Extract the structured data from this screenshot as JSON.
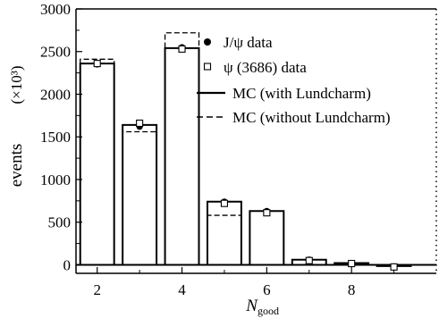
{
  "chart_data": {
    "type": "bar",
    "title": "",
    "xlabel": "N",
    "xlabel_sub": "good",
    "ylabel": "events",
    "ylabel_unit": "(×10³)",
    "xlim": [
      1.5,
      10
    ],
    "ylim": [
      -100,
      3000
    ],
    "x_ticks": [
      "2",
      "4",
      "6",
      "8"
    ],
    "x_tick_values": [
      2,
      4,
      6,
      8
    ],
    "y_ticks": [
      "0",
      "500",
      "1000",
      "1500",
      "2000",
      "2500",
      "3000"
    ],
    "y_tick_values": [
      0,
      500,
      1000,
      1500,
      2000,
      2500,
      3000
    ],
    "grid": false,
    "legend_position": "top-right",
    "x": [
      2,
      3,
      4,
      5,
      6,
      7,
      8,
      9
    ],
    "series": [
      {
        "name": "J/ψ data",
        "marker": "filled-circle",
        "values": [
          2350,
          1620,
          2550,
          740,
          630,
          60,
          20,
          -20
        ]
      },
      {
        "name": "ψ (3686) data",
        "marker": "open-square",
        "values": [
          2360,
          1660,
          2530,
          720,
          610,
          50,
          15,
          -25
        ]
      },
      {
        "name": "MC (with Lundcharm)",
        "style": "solid",
        "values": [
          2360,
          1640,
          2540,
          740,
          630,
          60,
          20,
          -15
        ]
      },
      {
        "name": "MC (without Lundcharm)",
        "style": "dashed",
        "values": [
          2410,
          1560,
          2720,
          580,
          630,
          60,
          20,
          -15
        ]
      }
    ],
    "data_errors": [
      20,
      20,
      20,
      20,
      20,
      20,
      20,
      30
    ],
    "colors": {
      "axis": "#000000",
      "background": "#ffffff"
    }
  }
}
